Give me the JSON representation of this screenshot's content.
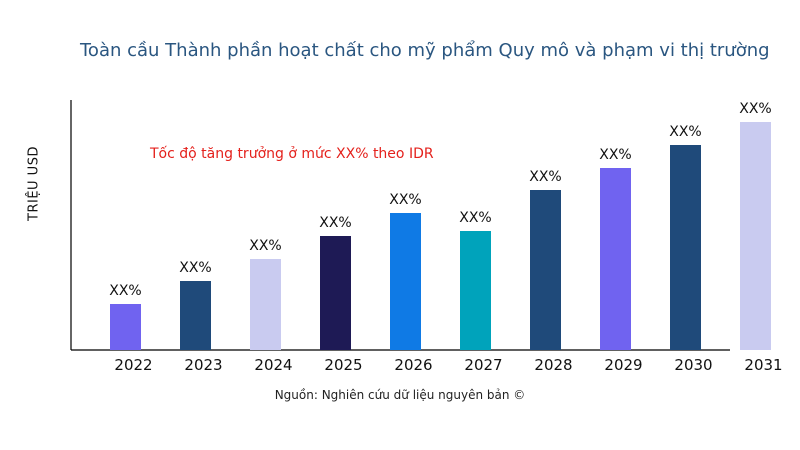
{
  "chart_data": {
    "type": "bar",
    "title": "Toàn cầu Thành phần hoạt chất cho mỹ phẩm Quy mô và phạm vi thị trường",
    "ylabel": "TRIỆU USD",
    "xlabel": "",
    "annotation": "Tốc độ tăng trưởng ở mức XX% theo IDR",
    "categories": [
      "2022",
      "2023",
      "2024",
      "2025",
      "2026",
      "2027",
      "2028",
      "2029",
      "2030",
      "2031"
    ],
    "values": [
      46,
      69,
      91,
      114,
      137,
      119,
      160,
      182,
      205,
      228
    ],
    "data_labels": [
      "XX%",
      "XX%",
      "XX%",
      "XX%",
      "XX%",
      "XX%",
      "XX%",
      "XX%",
      "XX%",
      "XX%"
    ],
    "colors": [
      "#7063f0",
      "#1f4a7a",
      "#c9cbf0",
      "#1e1a55",
      "#0f7ae5",
      "#00a3bb",
      "#1f4a7a",
      "#7063f0",
      "#1f4a7a",
      "#c9cbf0"
    ],
    "ylim": [
      0,
      250
    ],
    "grid": false,
    "legend": "none"
  },
  "source": "Nguồn: Nghiên cứu dữ liệu nguyên bản ©"
}
